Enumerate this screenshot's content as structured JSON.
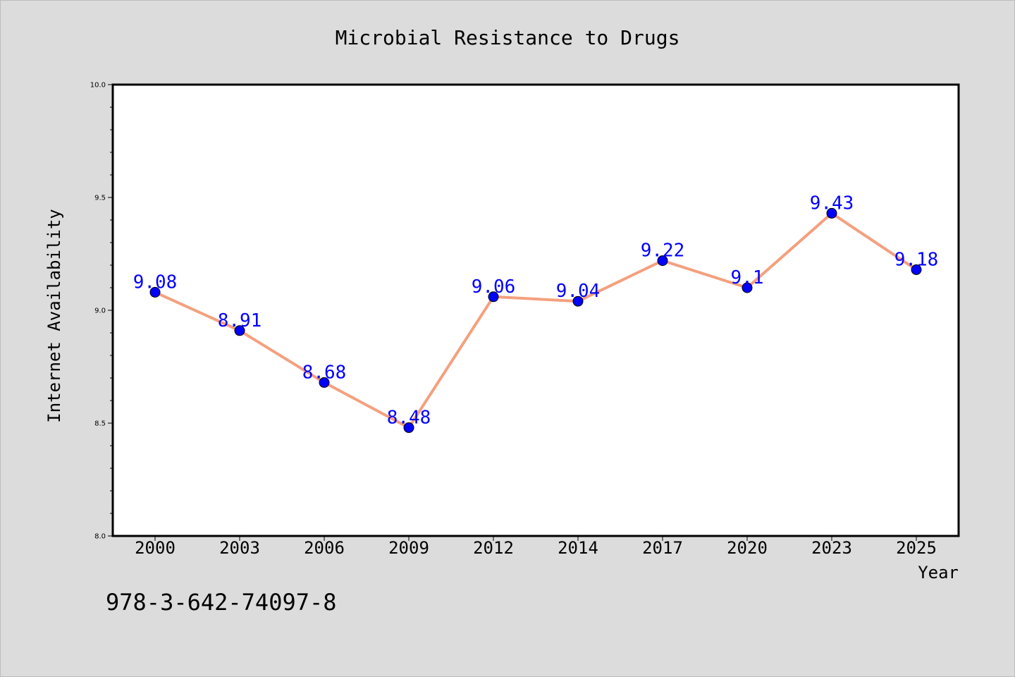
{
  "chart_data": {
    "type": "line",
    "title": "Microbial Resistance to Drugs",
    "xlabel": "Year",
    "ylabel": "Internet Availability",
    "categories": [
      "2000",
      "2003",
      "2006",
      "2009",
      "2012",
      "2014",
      "2017",
      "2020",
      "2023",
      "2025"
    ],
    "series": [
      {
        "values": [
          9.08,
          8.91,
          8.68,
          8.48,
          9.06,
          9.04,
          9.22,
          9.1,
          9.43,
          9.18
        ],
        "data_labels": [
          "9.08",
          "8.91",
          "8.68",
          "8.48",
          "9.06",
          "9.04",
          "9.22",
          "9.1",
          "9.43",
          "9.18"
        ],
        "line_color": "#f4a07e",
        "marker_color": "#0000ff"
      }
    ],
    "ylim": [
      8.0,
      10.0
    ],
    "yticks": [
      8.0,
      8.5,
      9.0,
      9.5,
      10.0
    ],
    "ytick_labels": [
      "8.0",
      "8.5",
      "9.0",
      "9.5",
      "10.0"
    ],
    "grid": false,
    "legend": "none"
  },
  "footnote": "978-3-642-74097-8",
  "colors": {
    "background": "#dcdcdc",
    "plot_area": "#ffffff",
    "line": "#f4a07e",
    "marker": "#0000ff",
    "data_label": "#0000ff"
  }
}
